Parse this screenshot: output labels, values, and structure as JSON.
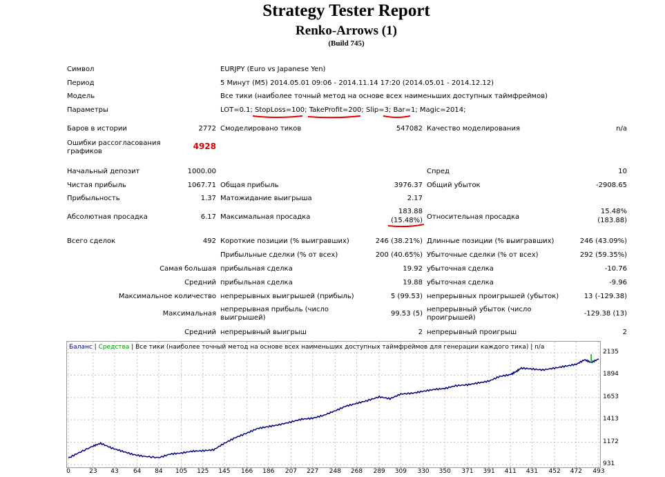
{
  "header": {
    "title": "Strategy Tester Report",
    "subtitle": "Renko-Arrows (1)",
    "build": "(Build 745)"
  },
  "info": {
    "symbol_label": "Символ",
    "symbol_value": "EURJPY (Euro vs Japanese Yen)",
    "period_label": "Период",
    "period_value": "5 Минут (M5) 2014.05.01 09:06 - 2014.11.14 17:20 (2014.05.01 - 2014.12.12)",
    "model_label": "Модель",
    "model_value": "Все тики (наиболее точный метод на основе всех наименьших доступных таймфреймов)",
    "params_label": "Параметры",
    "params_value": "LOT=0.1; StopLoss=100; TakeProfit=200; Slip=3; Bar=1; Magic=2014;"
  },
  "stats": {
    "bars_label": "Баров в истории",
    "bars_value": "2772",
    "ticks_label": "Смоделировано тиков",
    "ticks_value": "547082",
    "quality_label": "Качество моделирования",
    "quality_value": "n/a",
    "errors_label": "Ошибки рассогласования графиков",
    "errors_value": "4928",
    "deposit_label": "Начальный депозит",
    "deposit_value": "1000.00",
    "spread_label": "Спред",
    "spread_value": "10",
    "net_label": "Чистая прибыль",
    "net_value": "1067.71",
    "gross_profit_label": "Общая прибыль",
    "gross_profit_value": "3976.37",
    "gross_loss_label": "Общий убыток",
    "gross_loss_value": "-2908.65",
    "pf_label": "Прибыльность",
    "pf_value": "1.37",
    "payoff_label": "Матожидание выигрыша",
    "payoff_value": "2.17",
    "abs_dd_label": "Абсолютная просадка",
    "abs_dd_value": "6.17",
    "max_dd_label": "Максимальная просадка",
    "max_dd_value": "183.88",
    "max_dd_pct": "(15.48%)",
    "rel_dd_label": "Относительная просадка",
    "rel_dd_value": "15.48%",
    "rel_dd_money": "(183.88)",
    "trades_label": "Всего сделок",
    "trades_value": "492",
    "short_label": "Короткие позиции (% выигравших)",
    "short_value": "246 (38.21%)",
    "long_label": "Длинные позиции (% выигравших)",
    "long_value": "246 (43.09%)",
    "profit_trades_label": "Прибыльные сделки (% от всех)",
    "profit_trades_value": "200 (40.65%)",
    "loss_trades_label": "Убыточные сделки (% от всех)",
    "loss_trades_value": "292 (59.35%)",
    "largest_label": "Самая большая",
    "largest_profit_label": "прибыльная сделка",
    "largest_profit_value": "19.92",
    "largest_loss_label": "убыточная сделка",
    "largest_loss_value": "-10.76",
    "average_label": "Средний",
    "average_profit_label": "прибыльная сделка",
    "average_profit_value": "19.88",
    "average_loss_label": "убыточная сделка",
    "average_loss_value": "-9.96",
    "maxcount_label": "Максимальное количество",
    "maxcount_wins_label": "непрерывных выигрышей (прибыль)",
    "maxcount_wins_value": "5 (99.53)",
    "maxcount_losses_label": "непрерывных проигрышей (убыток)",
    "maxcount_losses_value": "13 (-129.38)",
    "maximal_label": "Максимальная",
    "maximal_profit_label": "непрерывная прибыль (число выигрышей)",
    "maximal_profit_value": "99.53 (5)",
    "maximal_loss_label": "непрерывный убыток (число проигрышей)",
    "maximal_loss_value": "-129.38 (13)",
    "avg_consec_label": "Средний",
    "avg_consec_wins_label": "непрерывный выигрыш",
    "avg_consec_wins_value": "2",
    "avg_consec_losses_label": "непрерывный проигрыш",
    "avg_consec_losses_value": "2"
  },
  "colors": {
    "balance": "#000080",
    "equity": "#00a000",
    "annotation": "#e00000",
    "grid": "#c0c0c0"
  },
  "chart_data": {
    "type": "line",
    "legend_balance": "Баланс",
    "legend_sep1": " | ",
    "legend_equity": "Средства",
    "legend_rest": " | Все тики (наиболее точный метод на основе всех наименьших доступных таймфреймов для генерации каждого тика) | n/a",
    "ylim": [
      931,
      2135
    ],
    "yticks": [
      "2135",
      "1894",
      "1653",
      "1413",
      "1172",
      "931"
    ],
    "xlim": [
      0,
      493
    ],
    "xticks": [
      "0",
      "23",
      "43",
      "64",
      "84",
      "105",
      "125",
      "145",
      "166",
      "186",
      "207",
      "227",
      "248",
      "268",
      "289",
      "309",
      "330",
      "350",
      "371",
      "391",
      "411",
      "431",
      "452",
      "472",
      "493"
    ],
    "series": [
      {
        "values_x": [
          0,
          10,
          23,
          30,
          40,
          50,
          60,
          70,
          84,
          95,
          105,
          115,
          125,
          135,
          145,
          155,
          166,
          176,
          186,
          196,
          207,
          217,
          227,
          237,
          248,
          258,
          268,
          278,
          289,
          299,
          309,
          320,
          330,
          340,
          350,
          360,
          371,
          381,
          391,
          401,
          411,
          416,
          421,
          431,
          441,
          452,
          462,
          472,
          480,
          486,
          493
        ],
        "values_y": [
          1000,
          1060,
          1130,
          1160,
          1110,
          1075,
          1040,
          1020,
          1005,
          1045,
          1055,
          1075,
          1080,
          1090,
          1160,
          1220,
          1270,
          1320,
          1340,
          1360,
          1390,
          1420,
          1430,
          1460,
          1510,
          1560,
          1590,
          1620,
          1660,
          1640,
          1690,
          1700,
          1720,
          1740,
          1750,
          1780,
          1790,
          1810,
          1830,
          1880,
          1900,
          1930,
          1970,
          1960,
          1950,
          1970,
          1990,
          2010,
          2060,
          2030,
          2068
        ]
      }
    ]
  }
}
